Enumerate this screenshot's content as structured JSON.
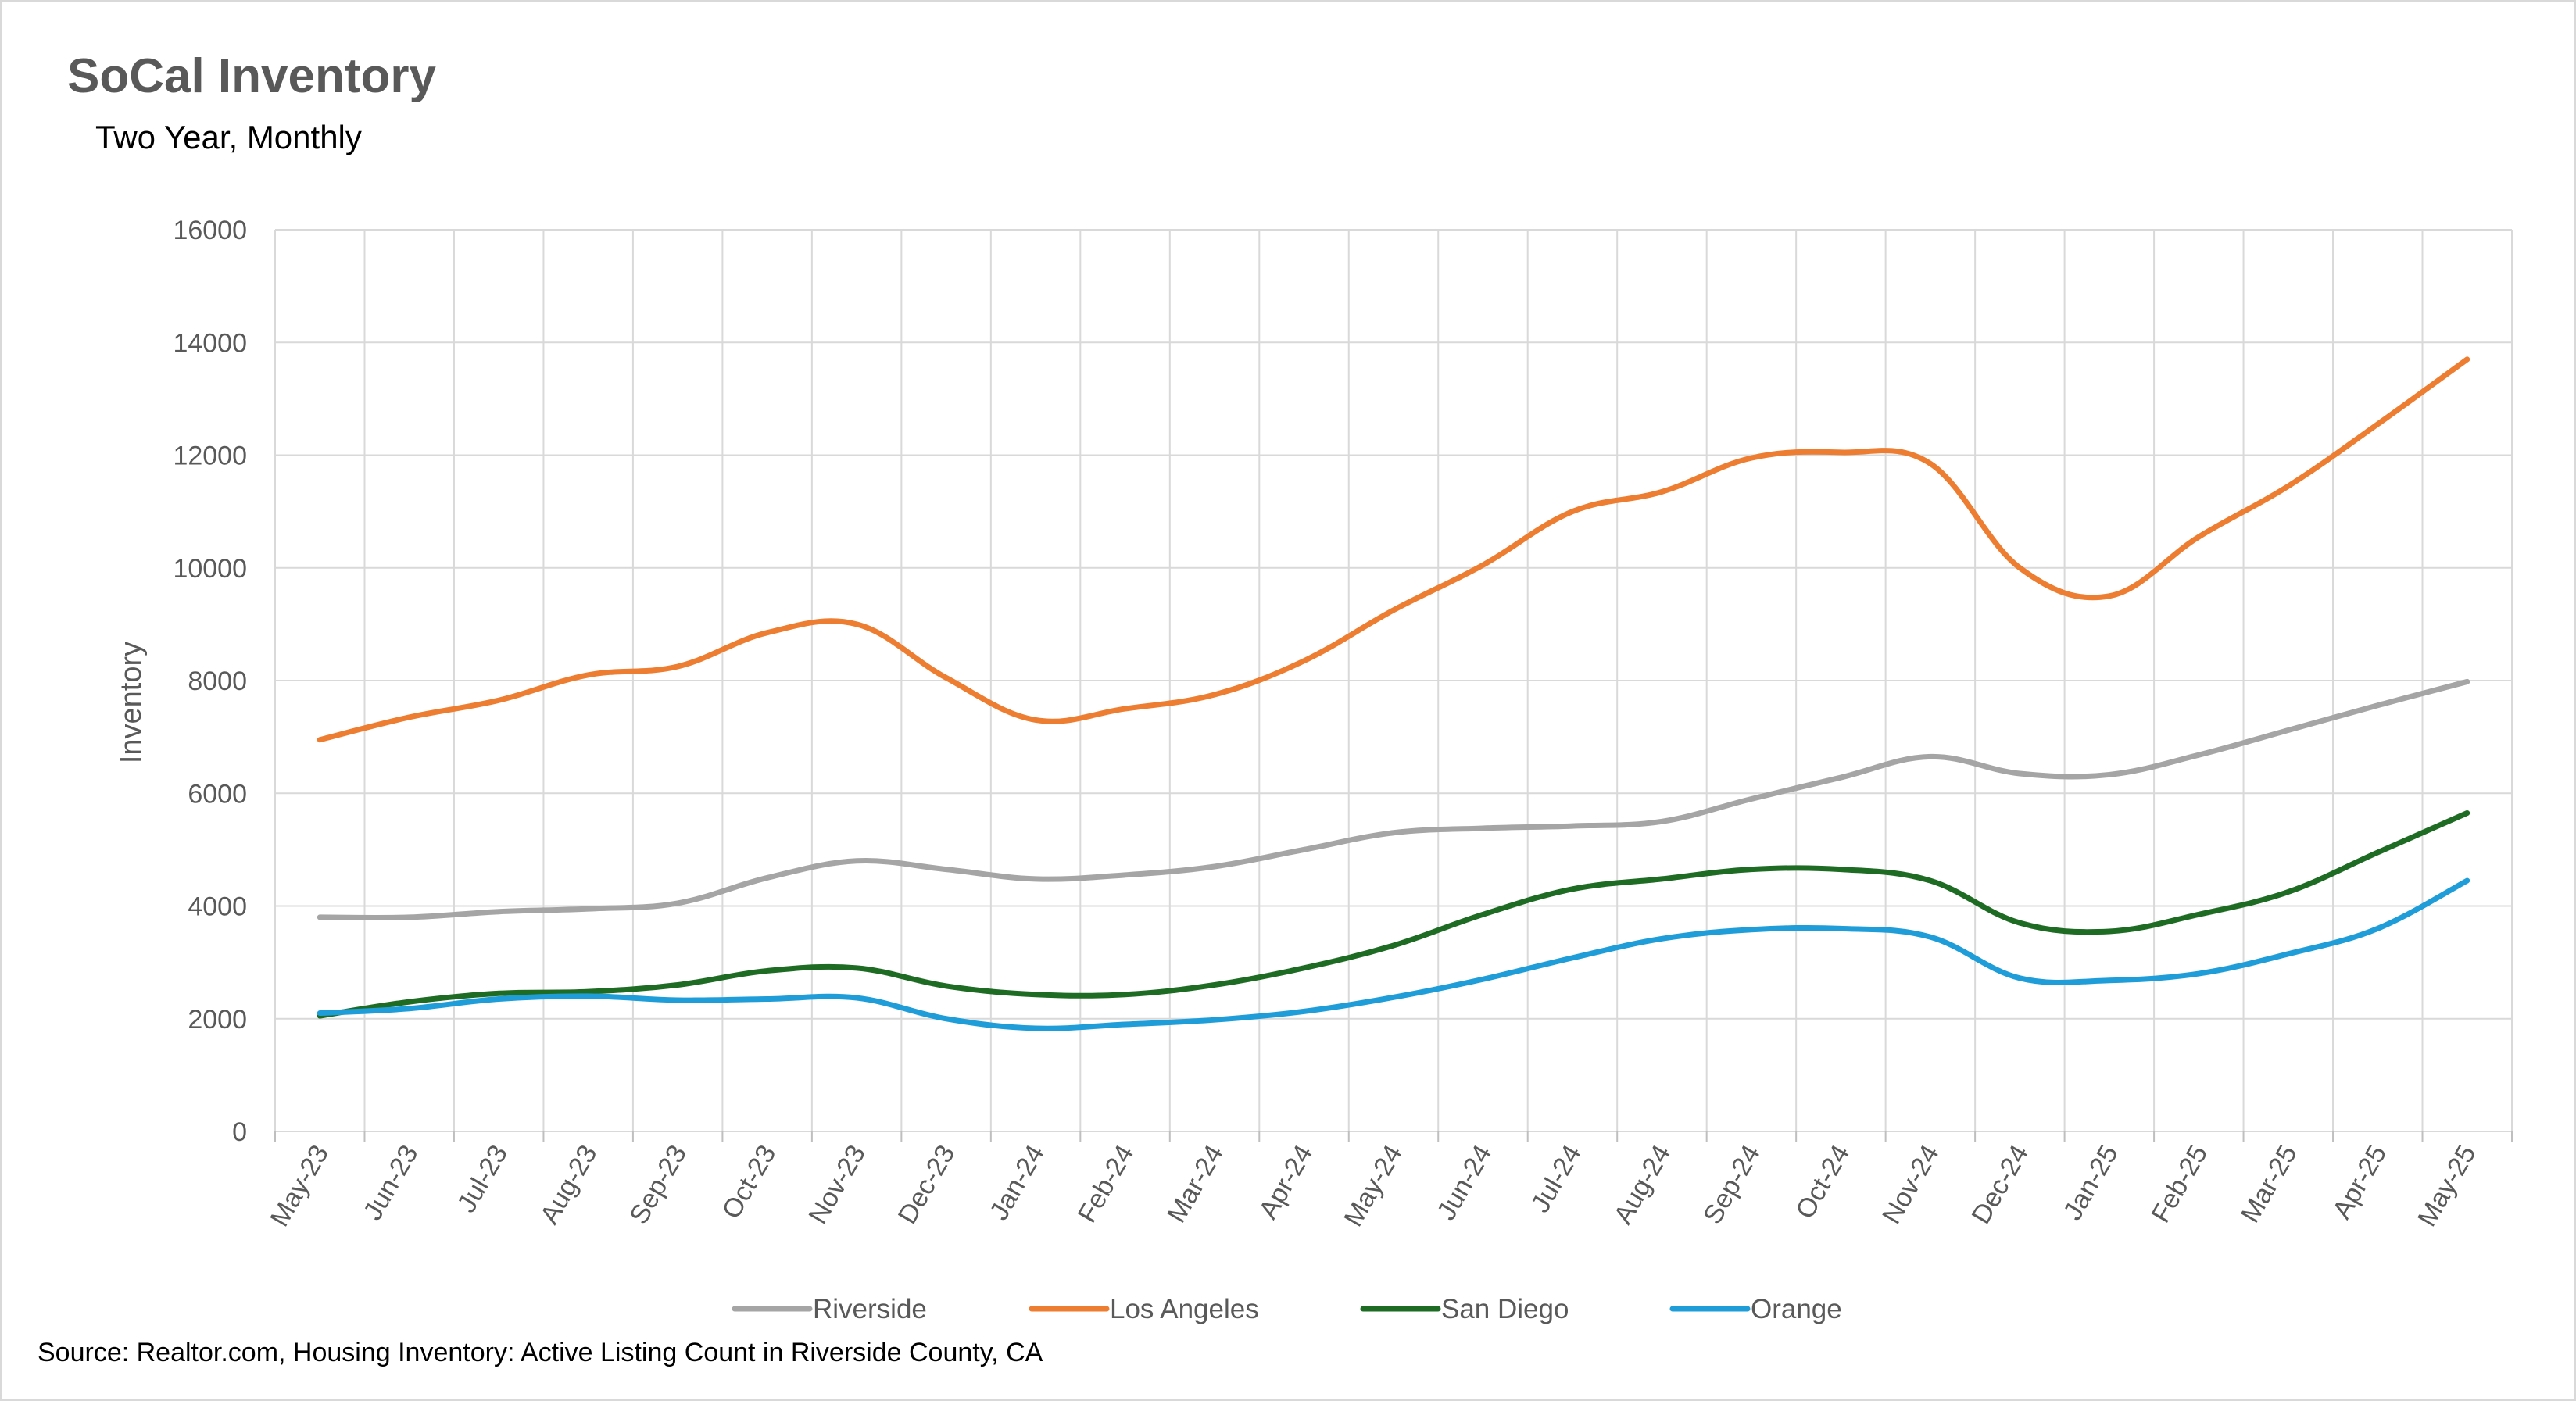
{
  "chart_data": {
    "type": "line",
    "title": "SoCal Inventory",
    "subtitle": "Two Year, Monthly",
    "xlabel": "",
    "ylabel": "Inventory",
    "ylim": [
      0,
      16000
    ],
    "yticks": [
      0,
      2000,
      4000,
      6000,
      8000,
      10000,
      12000,
      14000,
      16000
    ],
    "grid": true,
    "legend_position": "bottom",
    "categories": [
      "May-23",
      "Jun-23",
      "Jul-23",
      "Aug-23",
      "Sep-23",
      "Oct-23",
      "Nov-23",
      "Dec-23",
      "Jan-24",
      "Feb-24",
      "Mar-24",
      "Apr-24",
      "May-24",
      "Jun-24",
      "Jul-24",
      "Aug-24",
      "Sep-24",
      "Oct-24",
      "Nov-24",
      "Dec-24",
      "Jan-25",
      "Feb-25",
      "Mar-25",
      "Apr-25",
      "May-25"
    ],
    "series": [
      {
        "name": "Riverside",
        "color": "#a5a5a5",
        "values": [
          3800,
          3800,
          3900,
          3950,
          4050,
          4500,
          4800,
          4650,
          4480,
          4550,
          4700,
          5000,
          5300,
          5380,
          5420,
          5500,
          5900,
          6280,
          6650,
          6350,
          6330,
          6680,
          7120,
          7560,
          7980
        ]
      },
      {
        "name": "Los Angeles",
        "color": "#ed7d31",
        "values": [
          6950,
          7350,
          7650,
          8100,
          8250,
          8850,
          9000,
          8050,
          7300,
          7500,
          7750,
          8350,
          9250,
          10050,
          11000,
          11350,
          11950,
          12050,
          11850,
          10000,
          9500,
          10550,
          11450,
          12550,
          13700
        ]
      },
      {
        "name": "San Diego",
        "color": "#1e6b24",
        "values": [
          2050,
          2300,
          2450,
          2480,
          2600,
          2850,
          2900,
          2580,
          2430,
          2430,
          2600,
          2900,
          3300,
          3850,
          4300,
          4480,
          4650,
          4650,
          4450,
          3700,
          3550,
          3850,
          4250,
          4950,
          5650
        ]
      },
      {
        "name": "Orange",
        "color": "#1f9dd9",
        "values": [
          2100,
          2180,
          2350,
          2400,
          2330,
          2350,
          2370,
          2000,
          1830,
          1900,
          1980,
          2130,
          2380,
          2700,
          3080,
          3420,
          3580,
          3600,
          3450,
          2720,
          2680,
          2800,
          3150,
          3600,
          4450
        ]
      }
    ],
    "source": "Source: Realtor.com, Housing Inventory: Active Listing Count in Riverside County, CA"
  }
}
